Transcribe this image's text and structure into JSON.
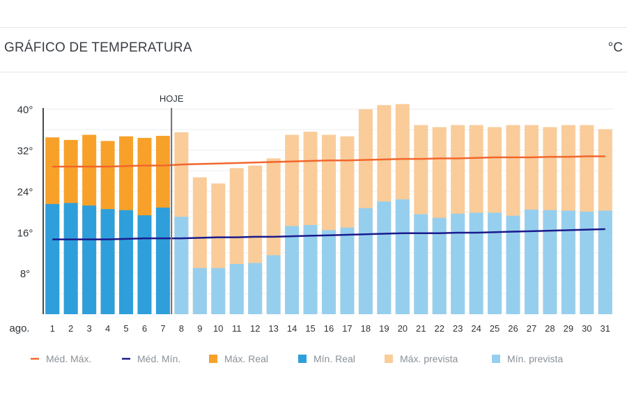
{
  "header": {
    "title": "GRÁFICO DE TEMPERATURA",
    "unit": "°C"
  },
  "colors": {
    "max_real": "#f7a12a",
    "min_real": "#2f9fdb",
    "max_forecast": "#f9cc9a",
    "min_forecast": "#96cfee",
    "avg_max": "#f2662c",
    "avg_min": "#1a1a8c",
    "grid": "#eceef0",
    "today_line": "#6e6e6e"
  },
  "chart_data": {
    "type": "bar",
    "x_axis_label": "ago.",
    "categories": [
      "1",
      "2",
      "3",
      "4",
      "5",
      "6",
      "7",
      "8",
      "9",
      "10",
      "11",
      "12",
      "13",
      "14",
      "15",
      "16",
      "17",
      "18",
      "19",
      "20",
      "21",
      "22",
      "23",
      "24",
      "25",
      "26",
      "27",
      "28",
      "29",
      "30",
      "31"
    ],
    "ylim": [
      0,
      42
    ],
    "y_ticks": [
      8,
      16,
      24,
      32,
      40
    ],
    "y_tick_labels": [
      "8°",
      "16°",
      "24°",
      "32°",
      "40°"
    ],
    "grid": true,
    "today_marker": {
      "label": "HOJE",
      "category": "8"
    },
    "series": [
      {
        "name": "Máx. Real",
        "kind": "bar",
        "values": [
          34.5,
          34,
          35,
          33.8,
          34.7,
          34.4,
          34.8,
          null,
          null,
          null,
          null,
          null,
          null,
          null,
          null,
          null,
          null,
          null,
          null,
          null,
          null,
          null,
          null,
          null,
          null,
          null,
          null,
          null,
          null,
          null,
          null
        ]
      },
      {
        "name": "Mín. Real",
        "kind": "bar",
        "values": [
          21.5,
          21.7,
          21.2,
          20.5,
          20.3,
          19.3,
          20.8,
          null,
          null,
          null,
          null,
          null,
          null,
          null,
          null,
          null,
          null,
          null,
          null,
          null,
          null,
          null,
          null,
          null,
          null,
          null,
          null,
          null,
          null,
          null,
          null
        ]
      },
      {
        "name": "Máx. prevista",
        "kind": "bar",
        "values": [
          null,
          null,
          null,
          null,
          null,
          null,
          null,
          35.5,
          26.7,
          25.5,
          28.5,
          29,
          30.4,
          35,
          35.6,
          35,
          34.7,
          40,
          40.8,
          41,
          36.9,
          36.5,
          36.9,
          36.9,
          36.5,
          36.9,
          36.9,
          36.5,
          36.9,
          36.9,
          36.1
        ]
      },
      {
        "name": "Mín. prevista",
        "kind": "bar",
        "values": [
          null,
          null,
          null,
          null,
          null,
          null,
          null,
          19,
          9,
          9,
          9.8,
          10,
          11.5,
          17.2,
          17.4,
          16.4,
          16.9,
          20.7,
          22,
          22.4,
          19.5,
          18.8,
          19.6,
          19.8,
          19.8,
          19.2,
          20.4,
          20.3,
          20.2,
          20,
          20.2
        ]
      },
      {
        "name": "Méd. Máx.",
        "kind": "line",
        "values": [
          28.8,
          28.8,
          28.8,
          28.8,
          28.9,
          29,
          29,
          29.2,
          29.3,
          29.4,
          29.5,
          29.6,
          29.7,
          29.8,
          29.9,
          30,
          30,
          30.1,
          30.2,
          30.3,
          30.3,
          30.4,
          30.4,
          30.5,
          30.6,
          30.6,
          30.6,
          30.7,
          30.7,
          30.8,
          30.8
        ]
      },
      {
        "name": "Méd. Mín.",
        "kind": "line",
        "values": [
          14.6,
          14.6,
          14.6,
          14.6,
          14.7,
          14.8,
          14.8,
          14.8,
          14.9,
          15,
          15,
          15.1,
          15.1,
          15.2,
          15.3,
          15.4,
          15.5,
          15.6,
          15.7,
          15.8,
          15.8,
          15.8,
          15.9,
          15.9,
          16,
          16.1,
          16.2,
          16.3,
          16.4,
          16.5,
          16.6
        ]
      }
    ],
    "legend": {
      "position": "bottom",
      "items": [
        {
          "label": "Méd. Máx.",
          "marker": "line",
          "color_key": "avg_max"
        },
        {
          "label": "Méd. Mín.",
          "marker": "line",
          "color_key": "avg_min"
        },
        {
          "label": "Máx. Real",
          "marker": "square",
          "color_key": "max_real"
        },
        {
          "label": "Mín. Real",
          "marker": "square",
          "color_key": "min_real"
        },
        {
          "label": "Máx. prevista",
          "marker": "square",
          "color_key": "max_forecast"
        },
        {
          "label": "Mín. prevista",
          "marker": "square",
          "color_key": "min_forecast"
        }
      ]
    }
  }
}
